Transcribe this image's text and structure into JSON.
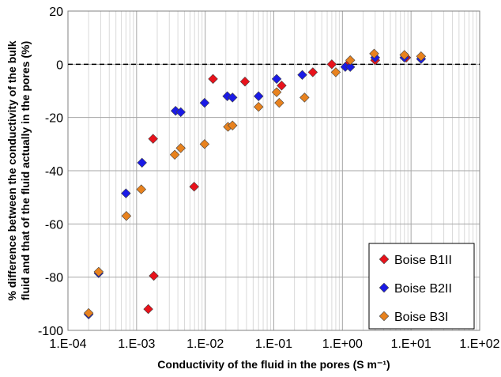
{
  "chart_data": {
    "type": "scatter",
    "x_scale": "log",
    "xlim": [
      0.0001,
      100
    ],
    "ylim": [
      -100,
      20
    ],
    "y_step": 20,
    "x_tick_labels": [
      "1.E-04",
      "1.E-03",
      "1.E-02",
      "1.E-01",
      "1.E+00",
      "1.E+01",
      "1.E+02"
    ],
    "y_tick_labels": [
      "20",
      "0",
      "-20",
      "-40",
      "-60",
      "-80",
      "-100"
    ],
    "xlabel": "Conductivity of the fluid in the pores (S m⁻¹)",
    "ylabel_line1": "% difference between the conductivity of the bulk",
    "ylabel_line2": "fluid and that of the fluid actually in the pores (%)",
    "grid": true,
    "reference_line_y": 0,
    "legend_position": "bottom-right",
    "series": [
      {
        "name": "Boise B1II",
        "color": "#e8121b",
        "points": [
          [
            0.00148,
            -92
          ],
          [
            0.00174,
            -28
          ],
          [
            0.00178,
            -79.5
          ],
          [
            0.0069,
            -46
          ],
          [
            0.013,
            -5.5
          ],
          [
            0.038,
            -6.5
          ],
          [
            0.13,
            -8
          ],
          [
            0.37,
            -3
          ],
          [
            0.7,
            0
          ],
          [
            1.2,
            0
          ],
          [
            3.0,
            1.5
          ],
          [
            8.5,
            2.5
          ]
        ]
      },
      {
        "name": "Boise B2II",
        "color": "#1a1ae6",
        "points": [
          [
            0.0002,
            -94
          ],
          [
            0.00028,
            -78.5
          ],
          [
            0.0007,
            -48.5
          ],
          [
            0.0012,
            -37
          ],
          [
            0.0037,
            -17.5
          ],
          [
            0.0044,
            -18
          ],
          [
            0.0098,
            -14.5
          ],
          [
            0.021,
            -12
          ],
          [
            0.025,
            -12.5
          ],
          [
            0.06,
            -12
          ],
          [
            0.11,
            -5.5
          ],
          [
            0.26,
            -4
          ],
          [
            1.1,
            -1
          ],
          [
            1.3,
            -1
          ],
          [
            3.0,
            2.5
          ],
          [
            8.0,
            2.5
          ],
          [
            14,
            2
          ]
        ]
      },
      {
        "name": "Boise B3I",
        "color": "#e8821e",
        "points": [
          [
            0.0002,
            -93.5
          ],
          [
            0.00028,
            -78
          ],
          [
            0.00071,
            -57
          ],
          [
            0.00117,
            -47
          ],
          [
            0.0036,
            -34
          ],
          [
            0.0044,
            -31.5
          ],
          [
            0.0098,
            -30
          ],
          [
            0.0215,
            -23.5
          ],
          [
            0.025,
            -23
          ],
          [
            0.06,
            -16
          ],
          [
            0.11,
            -10.5
          ],
          [
            0.12,
            -14.5
          ],
          [
            0.28,
            -12.5
          ],
          [
            0.8,
            -3
          ],
          [
            1.3,
            1.5
          ],
          [
            2.9,
            4
          ],
          [
            8.0,
            3.5
          ],
          [
            14,
            3
          ]
        ]
      }
    ]
  }
}
